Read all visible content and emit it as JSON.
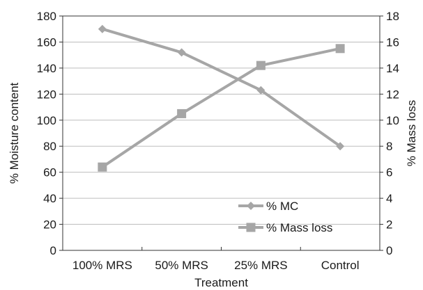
{
  "chart_data": {
    "type": "line",
    "categories": [
      "100% MRS",
      "50% MRS",
      "25% MRS",
      "Control"
    ],
    "xlabel": "Treatment",
    "ylabel_left": "% Moisture content",
    "ylabel_right": "% Mass loss",
    "ylim_left": [
      0,
      180
    ],
    "ylim_right": [
      0,
      18
    ],
    "yticks_left": [
      "0",
      "20",
      "40",
      "60",
      "80",
      "100",
      "120",
      "140",
      "160",
      "180"
    ],
    "yticks_right": [
      "0",
      "2",
      "4",
      "6",
      "8",
      "10",
      "12",
      "14",
      "16",
      "18"
    ],
    "grid": true,
    "legend_position": "lower-right-inside",
    "series": [
      {
        "name": "% MC",
        "axis": "left",
        "marker": "diamond",
        "color": "#a6a6a6",
        "values": [
          170,
          152,
          123,
          80
        ]
      },
      {
        "name": "% Mass loss",
        "axis": "right",
        "marker": "square",
        "color": "#a6a6a6",
        "values": [
          6.4,
          10.5,
          14.2,
          15.5
        ]
      }
    ]
  }
}
